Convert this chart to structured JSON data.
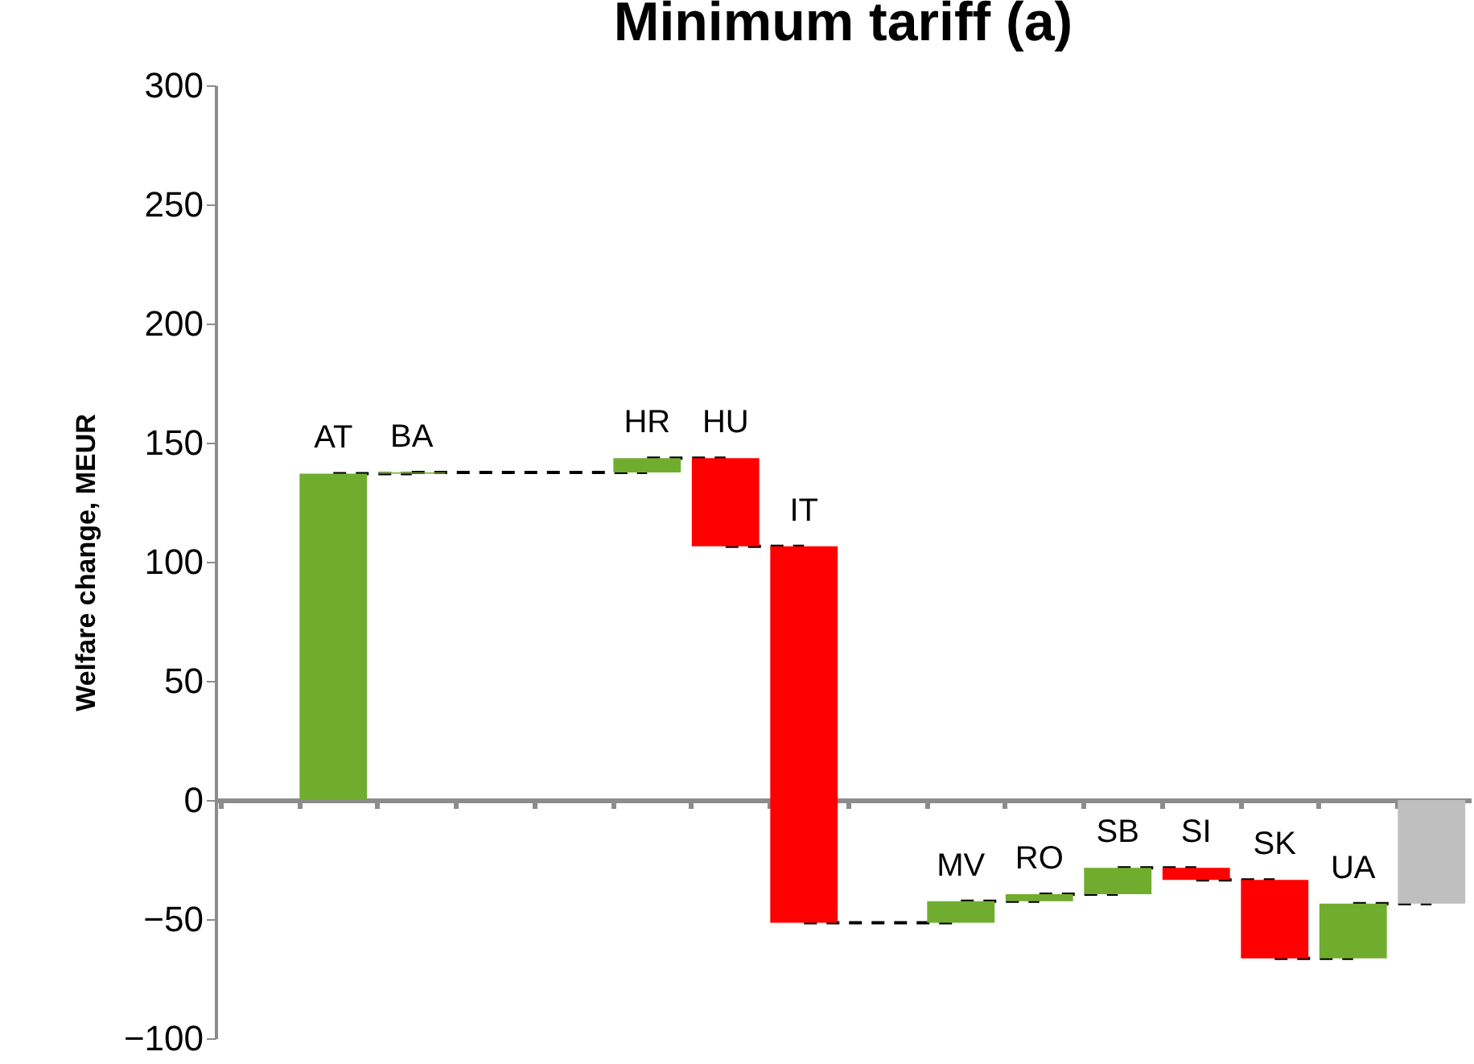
{
  "chart_data": {
    "type": "bar",
    "title": "Minimum tariff (a)",
    "ylabel": "Welfare change, MEUR",
    "categories": [
      null,
      "AT",
      "BA",
      null,
      null,
      "HR",
      "HU",
      "IT",
      null,
      "MV",
      "RO",
      "SB",
      "SI",
      "SK",
      "UA",
      null
    ],
    "values": [
      null,
      137,
      0.5,
      null,
      null,
      6,
      -37,
      -158,
      null,
      9,
      3,
      11,
      -5,
      -33,
      23,
      -43.5
    ],
    "base": [
      null,
      0,
      137,
      null,
      null,
      137.5,
      143.5,
      106.5,
      null,
      -51.5,
      -42.5,
      -39.5,
      -28.5,
      -33.5,
      -66.5,
      0
    ],
    "colors": [
      null,
      "#70ad2f",
      "#70ad2f",
      null,
      null,
      "#70ad2f",
      "#ff0000",
      "#ff0000",
      null,
      "#70ad2f",
      "#70ad2f",
      "#70ad2f",
      "#ff0000",
      "#ff0000",
      "#70ad2f",
      "#bfbfbf"
    ],
    "ylim": [
      -100,
      300
    ],
    "yticks": [
      -100,
      -50,
      0,
      50,
      100,
      150,
      200,
      250,
      300
    ],
    "grid": false,
    "tick_labels": "y"
  }
}
